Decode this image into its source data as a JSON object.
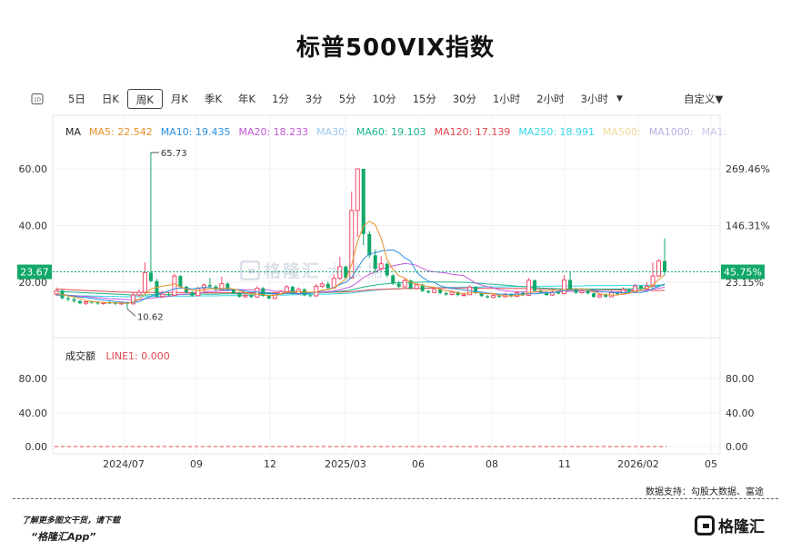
{
  "title": "标普500VIX指数",
  "toolbar": {
    "items": [
      "5日",
      "日K",
      "周K",
      "月K",
      "季K",
      "年K",
      "1分",
      "3分",
      "5分",
      "10分",
      "15分",
      "30分",
      "1小时",
      "2小时",
      "3小时"
    ],
    "active": "周K",
    "day_icon": "1D",
    "custom": "自定义"
  },
  "ma_legend": {
    "ma": "MA",
    "ma5": "MA5: 22.542",
    "ma10": "MA10: 19.435",
    "ma20": "MA20: 18.233",
    "ma30": "MA30:",
    "ma60": "MA60: 19.103",
    "ma120": "MA120: 17.139",
    "ma250": "MA250: 18.991",
    "ma500": "MA500:",
    "ma1000": "MA1000:",
    "ma_more": "MA1:"
  },
  "volume_legend": {
    "label": "成交额",
    "line1": "LINE1: 0.000"
  },
  "source": "数据支持：勾股大数据、富途",
  "promo": {
    "line1": "了解更多图文干货，请下载",
    "line2": "“格隆汇App”"
  },
  "logo_text": "格隆汇",
  "watermark": {
    "brand": "格隆汇",
    "suffix": "大数据"
  },
  "colors": {
    "up": "#f04a6a",
    "down": "#12a86a",
    "ma5": "#e8922a",
    "ma10": "#2a8fe0",
    "ma20": "#c45ad8",
    "ma30": "#9dc8ee",
    "ma60": "#1ab58a",
    "ma120": "#e2474f",
    "ma250": "#35d6e6",
    "ma500": "#f0d9a0",
    "ma1000": "#b6b0e6"
  },
  "chart_data": {
    "type": "candlestick",
    "x_ticks": [
      "2024/07",
      "09",
      "12",
      "2025/03",
      "06",
      "08",
      "11",
      "2026/02",
      "05"
    ],
    "y_left_ticks": [
      "60.00",
      "40.00",
      "20.00"
    ],
    "y_right_ticks": [
      "269.46%",
      "146.31%",
      "23.15%"
    ],
    "ylim": [
      9,
      68
    ],
    "last_price": "23.67",
    "last_change": "45.75%",
    "annotations": {
      "high": "65.73",
      "low": "10.62"
    },
    "volume_ticks_left": [
      "80.00",
      "40.00",
      "0.00"
    ],
    "volume_ticks_right": [
      "80.00",
      "40.00",
      "0.00"
    ],
    "candles": [
      [
        15.8,
        17.0,
        18.2,
        15.2
      ],
      [
        17.0,
        14.4,
        17.5,
        14.0
      ],
      [
        14.4,
        14.0,
        15.0,
        13.2
      ],
      [
        14.0,
        13.4,
        14.6,
        12.8
      ],
      [
        13.4,
        12.6,
        13.8,
        12.2
      ],
      [
        12.6,
        13.1,
        13.6,
        12.0
      ],
      [
        13.1,
        12.9,
        13.5,
        12.4
      ],
      [
        12.9,
        12.5,
        13.4,
        12.1
      ],
      [
        12.5,
        12.8,
        13.2,
        12.0
      ],
      [
        12.8,
        12.7,
        13.5,
        12.3
      ],
      [
        12.7,
        12.4,
        13.0,
        11.9
      ],
      [
        12.4,
        12.7,
        13.3,
        12.0
      ],
      [
        12.7,
        12.4,
        13.0,
        10.62
      ],
      [
        12.4,
        15.5,
        16.6,
        12.1
      ],
      [
        15.5,
        16.5,
        17.5,
        15.0
      ],
      [
        16.5,
        23.4,
        27.0,
        16.2
      ],
      [
        23.4,
        20.4,
        65.73,
        20.0
      ],
      [
        20.4,
        15.0,
        21.2,
        14.6
      ],
      [
        15.0,
        15.8,
        17.0,
        14.5
      ],
      [
        15.8,
        15.4,
        16.5,
        15.0
      ],
      [
        15.4,
        22.2,
        23.0,
        15.0
      ],
      [
        22.2,
        18.4,
        22.6,
        17.8
      ],
      [
        18.4,
        16.4,
        18.8,
        16.0
      ],
      [
        16.4,
        15.3,
        16.8,
        14.9
      ],
      [
        15.3,
        17.8,
        18.5,
        15.0
      ],
      [
        17.8,
        19.0,
        19.6,
        16.8
      ],
      [
        19.0,
        18.5,
        21.5,
        18.0
      ],
      [
        18.5,
        17.4,
        19.0,
        17.0
      ],
      [
        17.4,
        19.5,
        22.0,
        17.0
      ],
      [
        19.5,
        17.3,
        20.0,
        16.8
      ],
      [
        17.3,
        16.2,
        17.6,
        15.8
      ],
      [
        16.2,
        14.9,
        16.6,
        14.6
      ],
      [
        14.9,
        15.4,
        16.0,
        14.5
      ],
      [
        15.4,
        14.8,
        15.8,
        14.4
      ],
      [
        14.8,
        17.9,
        18.6,
        14.6
      ],
      [
        17.9,
        15.2,
        18.3,
        14.9
      ],
      [
        15.2,
        14.3,
        15.6,
        14.0
      ],
      [
        14.3,
        15.9,
        16.6,
        14.0
      ],
      [
        15.9,
        16.7,
        17.2,
        15.5
      ],
      [
        16.7,
        18.4,
        19.0,
        16.3
      ],
      [
        18.4,
        15.9,
        18.8,
        15.6
      ],
      [
        15.9,
        17.5,
        18.2,
        15.5
      ],
      [
        17.5,
        15.4,
        17.9,
        15.1
      ],
      [
        15.4,
        15.2,
        15.8,
        14.8
      ],
      [
        15.2,
        18.6,
        19.4,
        14.9
      ],
      [
        18.6,
        19.4,
        20.1,
        18.0
      ],
      [
        19.4,
        18.0,
        20.4,
        17.6
      ],
      [
        18.0,
        21.4,
        22.8,
        17.8
      ],
      [
        21.4,
        25.5,
        29.0,
        20.8
      ],
      [
        25.5,
        21.5,
        26.0,
        21.0
      ],
      [
        21.5,
        45.3,
        52.0,
        21.2
      ],
      [
        45.3,
        60.0,
        60.0,
        36.0
      ],
      [
        60.0,
        37.0,
        45.0,
        33.0
      ],
      [
        37.0,
        29.5,
        38.0,
        28.5
      ],
      [
        29.5,
        24.8,
        31.5,
        23.4
      ],
      [
        24.8,
        26.5,
        29.2,
        24.2
      ],
      [
        26.5,
        22.4,
        27.0,
        21.8
      ],
      [
        22.4,
        19.5,
        22.9,
        19.0
      ],
      [
        19.5,
        18.4,
        20.5,
        18.0
      ],
      [
        18.4,
        20.6,
        21.5,
        18.1
      ],
      [
        20.6,
        17.8,
        21.0,
        17.5
      ],
      [
        17.8,
        19.1,
        19.6,
        17.4
      ],
      [
        19.1,
        16.9,
        19.5,
        16.5
      ],
      [
        16.9,
        16.4,
        17.3,
        16.0
      ],
      [
        16.4,
        17.5,
        18.5,
        16.2
      ],
      [
        17.5,
        16.2,
        17.8,
        15.8
      ],
      [
        16.2,
        15.7,
        16.6,
        15.2
      ],
      [
        15.7,
        16.5,
        17.0,
        15.3
      ],
      [
        16.5,
        15.5,
        16.9,
        15.0
      ],
      [
        15.5,
        15.6,
        16.2,
        15.1
      ],
      [
        15.6,
        18.3,
        19.0,
        15.4
      ],
      [
        18.3,
        16.2,
        18.6,
        15.8
      ],
      [
        16.2,
        15.1,
        16.5,
        14.8
      ],
      [
        15.1,
        14.7,
        15.5,
        14.3
      ],
      [
        14.7,
        15.4,
        16.0,
        14.4
      ],
      [
        15.4,
        14.9,
        15.8,
        14.5
      ],
      [
        14.9,
        15.7,
        16.3,
        14.6
      ],
      [
        15.7,
        15.0,
        16.1,
        14.7
      ],
      [
        15.0,
        16.3,
        16.9,
        14.8
      ],
      [
        16.3,
        15.4,
        16.7,
        15.1
      ],
      [
        15.4,
        20.7,
        21.4,
        15.2
      ],
      [
        20.7,
        17.0,
        21.0,
        16.6
      ],
      [
        17.0,
        16.4,
        17.5,
        16.0
      ],
      [
        16.4,
        15.5,
        16.8,
        15.1
      ],
      [
        15.5,
        16.5,
        17.0,
        15.2
      ],
      [
        16.5,
        16.0,
        17.2,
        15.7
      ],
      [
        16.0,
        20.8,
        22.5,
        15.8
      ],
      [
        20.8,
        17.5,
        23.7,
        17.1
      ],
      [
        17.5,
        16.3,
        18.0,
        15.9
      ],
      [
        16.3,
        17.0,
        17.6,
        16.0
      ],
      [
        17.0,
        16.1,
        17.4,
        15.7
      ],
      [
        16.1,
        14.8,
        16.5,
        14.5
      ],
      [
        14.8,
        15.5,
        16.1,
        14.5
      ],
      [
        15.5,
        14.9,
        15.9,
        14.6
      ],
      [
        14.9,
        16.3,
        17.0,
        14.7
      ],
      [
        16.3,
        15.8,
        16.6,
        15.4
      ],
      [
        15.8,
        17.4,
        18.2,
        15.6
      ],
      [
        17.4,
        16.6,
        17.8,
        16.2
      ],
      [
        16.6,
        18.7,
        19.4,
        16.3
      ],
      [
        18.7,
        17.7,
        19.0,
        17.3
      ],
      [
        17.7,
        18.6,
        20.0,
        17.4
      ],
      [
        18.6,
        22.2,
        27.0,
        18.3
      ],
      [
        22.2,
        27.5,
        28.2,
        21.9
      ],
      [
        27.5,
        23.67,
        35.5,
        22.5
      ]
    ],
    "ma5": [
      16.0,
      15.6,
      15.2,
      14.8,
      14.3,
      13.5,
      13.2,
      13.0,
      12.8,
      12.8,
      12.7,
      12.6,
      12.6,
      13.1,
      13.9,
      15.9,
      17.6,
      18.2,
      18.7,
      18.9,
      19.5,
      18.4,
      17.6,
      17.2,
      17.1,
      17.1,
      17.8,
      17.7,
      17.8,
      17.9,
      17.6,
      17.1,
      16.4,
      15.8,
      15.8,
      15.6,
      15.3,
      15.4,
      15.8,
      16.5,
      16.6,
      16.7,
      16.6,
      16.5,
      16.5,
      17.2,
      17.4,
      18.0,
      19.6,
      21.1,
      26.3,
      34.5,
      39.7,
      41.5,
      40.3,
      35.6,
      28.0,
      24.5,
      22.3,
      21.5,
      19.9,
      19.4,
      18.9,
      18.5,
      18.2,
      17.6,
      17.0,
      16.9,
      16.3,
      16.0,
      16.3,
      16.4,
      16.1,
      15.9,
      16.0,
      15.3,
      15.3,
      15.1,
      15.5,
      15.5,
      16.4,
      16.6,
      17.0,
      17.0,
      17.2,
      17.1,
      17.4,
      17.4,
      17.6,
      17.6,
      17.4,
      16.7,
      15.9,
      15.7,
      15.4,
      15.5,
      15.9,
      16.1,
      16.9,
      17.1,
      17.8,
      19.0,
      21.0,
      22.542
    ],
    "ma10": [
      15.7,
      15.6,
      15.4,
      15.1,
      14.8,
      14.6,
      14.3,
      14.0,
      13.7,
      13.5,
      13.2,
      13.0,
      12.9,
      12.9,
      13.2,
      14.1,
      15.1,
      15.7,
      16.3,
      16.9,
      17.7,
      18.0,
      17.9,
      17.7,
      17.9,
      18.2,
      18.1,
      17.6,
      17.5,
      17.3,
      17.5,
      17.3,
      16.9,
      16.6,
      16.6,
      16.4,
      16.3,
      15.9,
      15.8,
      16.1,
      16.1,
      16.0,
      16.0,
      16.1,
      16.5,
      17.0,
      17.5,
      18.2,
      19.2,
      20.0,
      21.7,
      25.0,
      28.2,
      30.0,
      30.4,
      31.0,
      31.3,
      31.4,
      30.4,
      28.6,
      27.5,
      23.6,
      21.7,
      20.4,
      19.9,
      18.8,
      18.2,
      17.8,
      17.6,
      17.3,
      17.1,
      16.7,
      16.5,
      16.2,
      16.0,
      15.8,
      15.8,
      15.7,
      15.8,
      15.9,
      15.9,
      15.9,
      16.1,
      16.3,
      16.3,
      16.8,
      17.0,
      17.2,
      17.3,
      17.5,
      17.3,
      17.1,
      16.8,
      16.6,
      16.5,
      16.3,
      16.4,
      16.3,
      16.4,
      16.4,
      16.8,
      17.8,
      18.5,
      19.435
    ],
    "ma20": [
      15.6,
      15.5,
      15.4,
      15.3,
      15.1,
      15.0,
      14.8,
      14.6,
      14.4,
      14.2,
      14.1,
      14.0,
      13.9,
      13.9,
      13.9,
      14.2,
      14.4,
      14.6,
      14.8,
      15.0,
      15.4,
      15.7,
      15.8,
      15.9,
      16.1,
      16.5,
      16.8,
      16.8,
      17.0,
      17.1,
      17.3,
      17.4,
      17.4,
      17.3,
      17.4,
      17.4,
      17.2,
      16.9,
      16.8,
      16.8,
      16.8,
      16.8,
      16.6,
      16.4,
      16.4,
      16.5,
      16.7,
      16.9,
      17.4,
      17.9,
      18.6,
      20.0,
      21.6,
      22.8,
      23.7,
      24.6,
      25.2,
      25.8,
      26.2,
      26.6,
      26.4,
      26.0,
      24.9,
      24.0,
      23.7,
      23.5,
      23.3,
      22.8,
      22.6,
      22.3,
      21.0,
      19.7,
      19.0,
      18.5,
      18.0,
      17.3,
      17.0,
      16.8,
      16.7,
      16.6,
      16.5,
      16.5,
      16.5,
      16.4,
      16.4,
      16.6,
      16.7,
      16.8,
      16.8,
      16.9,
      16.8,
      16.7,
      16.6,
      16.6,
      16.6,
      16.6,
      16.7,
      16.8,
      17.0,
      17.1,
      17.2,
      17.6,
      17.9,
      18.233
    ],
    "ma60": [
      16.8,
      16.7,
      16.6,
      16.5,
      16.4,
      16.3,
      16.2,
      16.1,
      16.0,
      15.9,
      15.8,
      15.7,
      15.6,
      15.5,
      15.5,
      15.5,
      15.6,
      15.6,
      15.6,
      15.6,
      15.7,
      15.7,
      15.7,
      15.7,
      15.8,
      15.8,
      15.8,
      15.8,
      15.9,
      15.9,
      15.9,
      15.9,
      15.9,
      15.9,
      16.0,
      16.0,
      16.0,
      16.0,
      16.0,
      16.1,
      16.1,
      16.1,
      16.2,
      16.2,
      16.3,
      16.4,
      16.5,
      16.6,
      16.8,
      17.0,
      17.3,
      17.8,
      18.3,
      18.7,
      19.0,
      19.3,
      19.5,
      19.7,
      19.8,
      19.9,
      20.0,
      20.0,
      20.1,
      20.1,
      20.1,
      20.1,
      20.1,
      20.1,
      20.0,
      20.0,
      19.9,
      19.7,
      19.6,
      19.4,
      19.3,
      19.1,
      19.0,
      18.8,
      18.6,
      18.5,
      18.4,
      18.2,
      18.0,
      17.9,
      17.8,
      17.7,
      17.7,
      17.7,
      17.7,
      17.7,
      17.6,
      17.6,
      17.6,
      17.6,
      17.6,
      17.6,
      17.7,
      17.7,
      17.8,
      17.9,
      18.1,
      18.5,
      18.8,
      19.103
    ],
    "ma120": [
      17.6,
      17.5,
      17.4,
      17.3,
      17.2,
      17.1,
      17.0,
      16.9,
      16.8,
      16.7,
      16.6,
      16.5,
      16.5,
      16.4,
      16.4,
      16.4,
      16.4,
      16.4,
      16.4,
      16.4,
      16.4,
      16.4,
      16.4,
      16.3,
      16.3,
      16.3,
      16.3,
      16.3,
      16.3,
      16.3,
      16.3,
      16.3,
      16.3,
      16.3,
      16.3,
      16.3,
      16.3,
      16.3,
      16.3,
      16.3,
      16.3,
      16.3,
      16.3,
      16.3,
      16.4,
      16.4,
      16.4,
      16.5,
      16.5,
      16.6,
      16.7,
      16.9,
      17.1,
      17.3,
      17.4,
      17.5,
      17.6,
      17.7,
      17.7,
      17.8,
      17.8,
      17.9,
      17.9,
      17.9,
      18.0,
      18.0,
      18.0,
      18.0,
      18.0,
      18.0,
      18.0,
      18.0,
      17.9,
      17.9,
      17.9,
      17.9,
      17.8,
      17.8,
      17.8,
      17.8,
      17.7,
      17.7,
      17.7,
      17.7,
      17.6,
      17.6,
      17.6,
      17.5,
      17.5,
      17.5,
      17.4,
      17.4,
      17.4,
      17.3,
      17.3,
      17.3,
      17.2,
      17.2,
      17.2,
      17.2,
      17.2,
      17.1,
      17.1,
      17.139
    ],
    "ma250": [
      15.4,
      15.4,
      15.3,
      15.3,
      15.2,
      15.2,
      15.1,
      15.1,
      15.0,
      15.0,
      15.0,
      14.9,
      14.9,
      14.9,
      14.9,
      14.9,
      15.0,
      15.0,
      15.0,
      15.0,
      15.1,
      15.1,
      15.1,
      15.1,
      15.2,
      15.2,
      15.2,
      15.2,
      15.3,
      15.3,
      15.3,
      15.3,
      15.4,
      15.4,
      15.4,
      15.4,
      15.5,
      15.5,
      15.5,
      15.5,
      15.6,
      15.6,
      15.6,
      15.7,
      15.7,
      15.8,
      15.8,
      15.9,
      16.0,
      16.1,
      16.2,
      16.5,
      16.8,
      17.0,
      17.2,
      17.4,
      17.5,
      17.6,
      17.7,
      17.8,
      17.9,
      17.9,
      18.0,
      18.0,
      18.1,
      18.1,
      18.2,
      18.2,
      18.2,
      18.3,
      18.3,
      18.3,
      18.3,
      18.4,
      18.4,
      18.4,
      18.4,
      18.5,
      18.5,
      18.5,
      18.5,
      18.6,
      18.6,
      18.6,
      18.6,
      18.7,
      18.7,
      18.7,
      18.7,
      18.7,
      18.8,
      18.8,
      18.8,
      18.8,
      18.8,
      18.8,
      18.9,
      18.9,
      18.9,
      18.9,
      18.9,
      18.9,
      19.0,
      18.991
    ]
  }
}
